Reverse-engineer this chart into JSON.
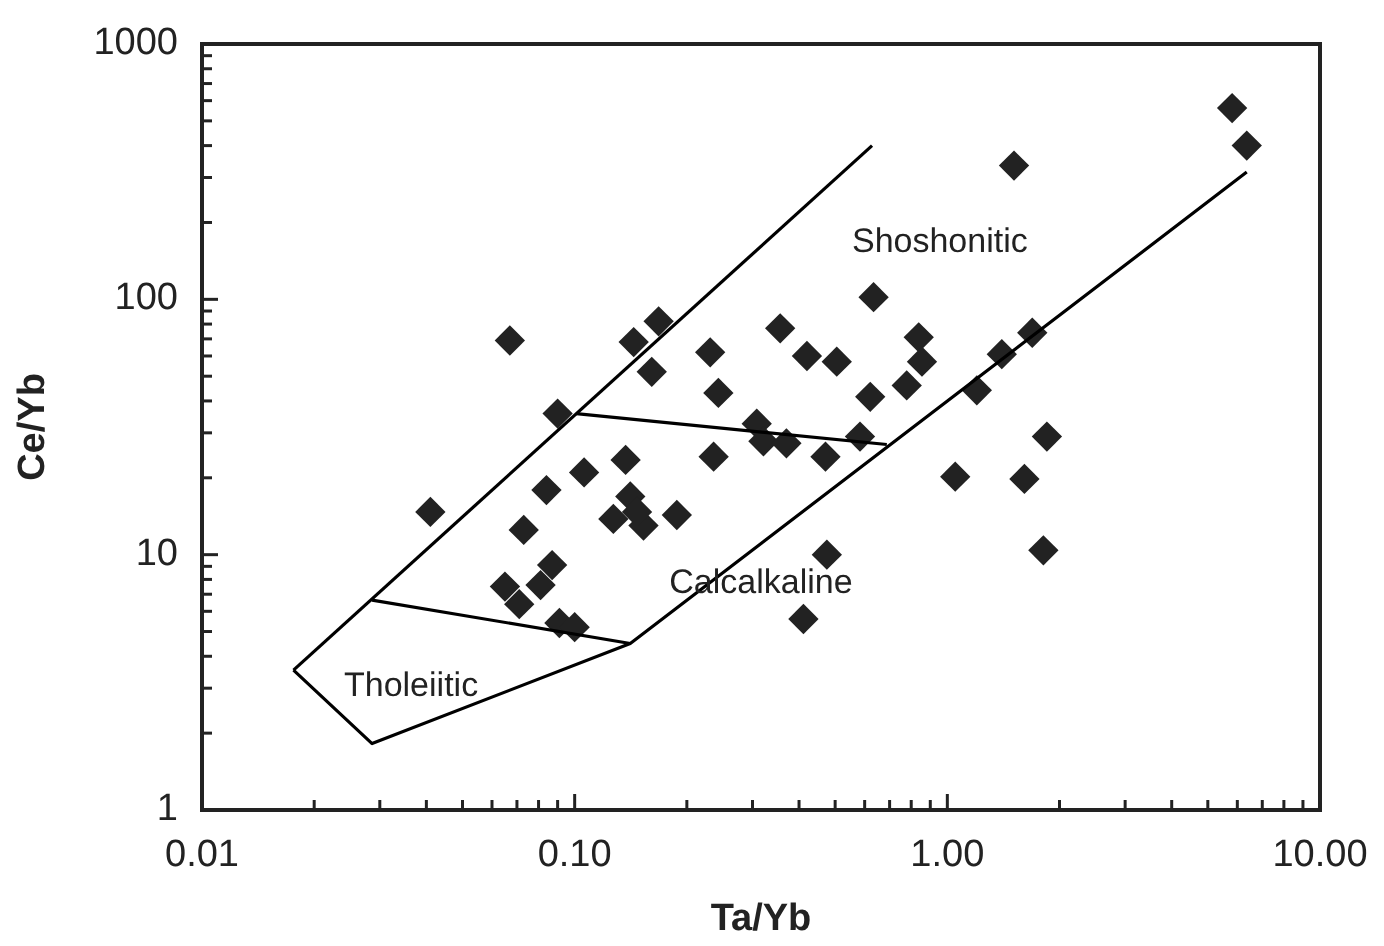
{
  "chart_data": {
    "type": "scatter",
    "xlabel": "Ta/Yb",
    "ylabel": "Ce/Yb",
    "log": "xy",
    "marker": "diamond",
    "line_style": "solid",
    "grid": false,
    "xlim": [
      0.01,
      10
    ],
    "ylim": [
      1,
      1000
    ],
    "xticks": [
      {
        "value": 0.01,
        "label": "0.01"
      },
      {
        "value": 0.02,
        "label": null
      },
      {
        "value": 0.03,
        "label": null
      },
      {
        "value": 0.04,
        "label": null
      },
      {
        "value": 0.05,
        "label": null
      },
      {
        "value": 0.06,
        "label": null
      },
      {
        "value": 0.07,
        "label": null
      },
      {
        "value": 0.08,
        "label": null
      },
      {
        "value": 0.09,
        "label": null
      },
      {
        "value": 0.1,
        "label": "0.10"
      },
      {
        "value": 0.2,
        "label": null
      },
      {
        "value": 0.3,
        "label": null
      },
      {
        "value": 0.4,
        "label": null
      },
      {
        "value": 0.5,
        "label": null
      },
      {
        "value": 0.6,
        "label": null
      },
      {
        "value": 0.7,
        "label": null
      },
      {
        "value": 0.8,
        "label": null
      },
      {
        "value": 0.9,
        "label": null
      },
      {
        "value": 1,
        "label": "1.00"
      },
      {
        "value": 2,
        "label": null
      },
      {
        "value": 3,
        "label": null
      },
      {
        "value": 4,
        "label": null
      },
      {
        "value": 5,
        "label": null
      },
      {
        "value": 6,
        "label": null
      },
      {
        "value": 7,
        "label": null
      },
      {
        "value": 8,
        "label": null
      },
      {
        "value": 9,
        "label": null
      },
      {
        "value": 10,
        "label": "10.00"
      }
    ],
    "yticks": [
      1,
      {
        "value": 2,
        "label": null
      },
      {
        "value": 3,
        "label": null
      },
      {
        "value": 4,
        "label": null
      },
      {
        "value": 5,
        "label": null
      },
      {
        "value": 6,
        "label": null
      },
      {
        "value": 7,
        "label": null
      },
      {
        "value": 8,
        "label": null
      },
      {
        "value": 9,
        "label": null
      },
      10,
      {
        "value": 20,
        "label": null
      },
      {
        "value": 30,
        "label": null
      },
      {
        "value": 40,
        "label": null
      },
      {
        "value": 50,
        "label": null
      },
      {
        "value": 60,
        "label": null
      },
      {
        "value": 70,
        "label": null
      },
      {
        "value": 80,
        "label": null
      },
      {
        "value": 90,
        "label": null
      },
      100,
      {
        "value": 200,
        "label": null
      },
      {
        "value": 300,
        "label": null
      },
      {
        "value": 400,
        "label": null
      },
      {
        "value": 500,
        "label": null
      },
      {
        "value": 600,
        "label": null
      },
      {
        "value": 700,
        "label": null
      },
      {
        "value": 800,
        "label": null
      },
      {
        "value": 900,
        "label": null
      },
      1000
    ],
    "series": [
      {
        "color": "#222222",
        "x": [
          0.067,
          0.09,
          0.041,
          0.106,
          0.084,
          0.073,
          0.087,
          0.081,
          0.065,
          0.071,
          0.091,
          0.1,
          0.168,
          0.144,
          0.161,
          0.231,
          0.243,
          0.356,
          0.42,
          0.505,
          0.634,
          0.838,
          0.855,
          0.778,
          0.621,
          1.2,
          0.308,
          0.321,
          0.37,
          0.583,
          0.471,
          0.236,
          0.137,
          0.141,
          0.127,
          0.153,
          0.147,
          0.188,
          1.05,
          0.475,
          0.411,
          5.81,
          6.36,
          1.51,
          1.4,
          1.69,
          1.85,
          1.61,
          1.81
        ],
        "values": [
          69,
          35.7,
          14.7,
          21,
          17.9,
          12.5,
          9.1,
          7.6,
          7.5,
          6.4,
          5.4,
          5.2,
          82,
          68,
          52,
          62,
          43,
          77,
          60,
          57,
          102,
          71,
          57,
          46,
          41.5,
          44,
          32.6,
          27.8,
          27.3,
          29,
          24.2,
          24.2,
          23.5,
          16.9,
          13.8,
          13,
          14.7,
          14.3,
          20.2,
          10,
          5.6,
          561,
          400,
          334,
          61,
          74,
          29,
          19.8,
          10.4
        ]
      },
      {
        "type": "line",
        "marker": "none",
        "color": "#000000",
        "x": [
          0.0176,
          0.628
        ],
        "values": [
          3.53,
          400
        ]
      },
      {
        "type": "line",
        "marker": "none",
        "color": "#000000",
        "x": [
          0.0176,
          0.0286,
          0.141,
          6.36
        ],
        "values": [
          3.53,
          1.82,
          4.49,
          315
        ]
      },
      {
        "type": "line",
        "marker": "none",
        "color": "#000000",
        "x": [
          0.0286,
          0.141
        ],
        "values": [
          6.64,
          4.49
        ]
      },
      {
        "type": "line",
        "marker": "none",
        "color": "#000000",
        "x": [
          0.101,
          0.688
        ],
        "values": [
          35.7,
          27
        ]
      }
    ],
    "annotations": [
      "Shoshonitic",
      "Calcalkaline",
      "Tholeiitic"
    ]
  }
}
